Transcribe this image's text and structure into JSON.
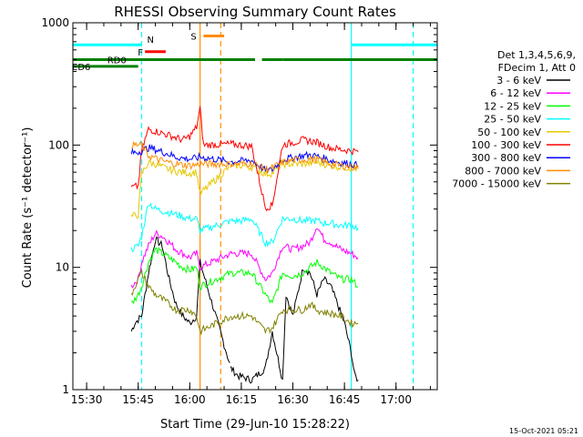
{
  "chart_data": {
    "type": "line",
    "title": "RHESSI Observing Summary Count Rates",
    "xlabel": "Start Time (29-Jun-10 15:28:22)",
    "ylabel": "Count Rate (s⁻¹ detector⁻¹)",
    "y_scale": "log",
    "ylim": [
      1,
      1000
    ],
    "xlim": [
      "15:26",
      "17:12"
    ],
    "x_ticks": [
      "15:30",
      "15:45",
      "16:00",
      "16:15",
      "16:30",
      "16:45",
      "17:00"
    ],
    "y_ticks": [
      "1",
      "10",
      "100",
      "1000"
    ],
    "timestamp": "15-Oct-2021 05:21",
    "legend": {
      "header": [
        "Det 1,3,4,5,6,9,",
        "FDecim 1, Att 0"
      ],
      "placement": "right",
      "entries": [
        {
          "label": "3 - 6 keV",
          "color": "#000000"
        },
        {
          "label": "6 - 12 keV",
          "color": "#ff00ff"
        },
        {
          "label": "12 - 25 keV",
          "color": "#00ff00"
        },
        {
          "label": "25 - 50 keV",
          "color": "#00ffff"
        },
        {
          "label": "50 - 100 keV",
          "color": "#e6c800"
        },
        {
          "label": "100 - 300 keV",
          "color": "#ff0000"
        },
        {
          "label": "300 - 800 keV",
          "color": "#0000ff"
        },
        {
          "label": "800 - 7000 keV",
          "color": "#ff8c00"
        },
        {
          "label": "7000 - 15000 keV",
          "color": "#808000"
        }
      ]
    },
    "flags": [
      {
        "label": "N",
        "color": "#00ffff",
        "segments": [
          [
            "15:26",
            "15:46"
          ],
          [
            "16:47",
            "17:12"
          ]
        ],
        "level": 660
      },
      {
        "label": "F",
        "color": "#ff0000",
        "segments": [
          [
            "15:47",
            "15:53"
          ]
        ],
        "level": 580
      },
      {
        "label": "S",
        "color": "#ff8c00",
        "segments": [
          [
            "16:04",
            "16:10"
          ]
        ],
        "level": 780
      },
      {
        "label": "RD0",
        "color": "#008000",
        "segments": [
          [
            "15:26",
            "16:19"
          ],
          [
            "16:21",
            "16:27"
          ],
          [
            "16:27",
            "17:12"
          ]
        ],
        "level": 500
      },
      {
        "label": "ED6",
        "color": "#008000",
        "segments": [
          [
            "15:26",
            "15:45"
          ]
        ],
        "level": 440
      }
    ],
    "vertical_lines": [
      {
        "time": "15:46",
        "color": "#00ffff",
        "style": "dashed"
      },
      {
        "time": "16:03",
        "color": "#ff8c00",
        "style": "solid"
      },
      {
        "time": "16:09",
        "color": "#ff8c00",
        "style": "dashed"
      },
      {
        "time": "16:47",
        "color": "#00ffff",
        "style": "solid"
      },
      {
        "time": "17:05",
        "color": "#00ffff",
        "style": "dashed"
      }
    ],
    "series": [
      {
        "name": "3 - 6 keV",
        "color": "#000000",
        "points": [
          [
            "15:43",
            3
          ],
          [
            "15:44",
            3.5
          ],
          [
            "15:46",
            4
          ],
          [
            "15:48",
            9
          ],
          [
            "15:50",
            17
          ],
          [
            "15:52",
            15
          ],
          [
            "15:54",
            8
          ],
          [
            "15:56",
            5
          ],
          [
            "15:58",
            4
          ],
          [
            "16:00",
            3.5
          ],
          [
            "16:02",
            4
          ],
          [
            "16:03",
            11
          ],
          [
            "16:12",
            1.5
          ],
          [
            "16:14",
            1.3
          ],
          [
            "16:18",
            1.2
          ],
          [
            "16:22",
            1.5
          ],
          [
            "16:24",
            3
          ],
          [
            "16:27",
            1.2
          ],
          [
            "16:28",
            6
          ],
          [
            "16:30",
            4
          ],
          [
            "16:33",
            10
          ],
          [
            "16:35",
            9
          ],
          [
            "16:37",
            6
          ],
          [
            "16:39",
            8
          ],
          [
            "16:41",
            7
          ],
          [
            "16:43",
            5
          ],
          [
            "16:45",
            3.5
          ],
          [
            "16:47",
            2
          ],
          [
            "16:48",
            1.3
          ],
          [
            "16:49",
            1.2
          ]
        ]
      },
      {
        "name": "6 - 12 keV",
        "color": "#ff00ff",
        "points": [
          [
            "15:43",
            7
          ],
          [
            "15:45",
            8
          ],
          [
            "15:46",
            11
          ],
          [
            "15:48",
            15
          ],
          [
            "15:50",
            19
          ],
          [
            "15:52",
            18
          ],
          [
            "15:54",
            16
          ],
          [
            "15:56",
            14
          ],
          [
            "15:58",
            13
          ],
          [
            "16:00",
            12
          ],
          [
            "16:02",
            13
          ],
          [
            "16:03",
            10
          ],
          [
            "16:12",
            13
          ],
          [
            "16:15",
            13
          ],
          [
            "16:18",
            13
          ],
          [
            "16:22",
            8
          ],
          [
            "16:24",
            9
          ],
          [
            "16:27",
            15
          ],
          [
            "16:30",
            14
          ],
          [
            "16:33",
            15
          ],
          [
            "16:35",
            16
          ],
          [
            "16:37",
            22
          ],
          [
            "16:39",
            17
          ],
          [
            "16:41",
            16
          ],
          [
            "16:44",
            14
          ],
          [
            "16:47",
            13
          ],
          [
            "16:49",
            12
          ]
        ]
      },
      {
        "name": "12 - 25 keV",
        "color": "#00ff00",
        "points": [
          [
            "15:43",
            5
          ],
          [
            "15:45",
            6
          ],
          [
            "15:46",
            7
          ],
          [
            "15:48",
            11
          ],
          [
            "15:50",
            14
          ],
          [
            "15:52",
            13
          ],
          [
            "15:54",
            12
          ],
          [
            "15:56",
            11
          ],
          [
            "15:58",
            10
          ],
          [
            "16:00",
            9.5
          ],
          [
            "16:02",
            10
          ],
          [
            "16:03",
            7
          ],
          [
            "16:12",
            9
          ],
          [
            "16:15",
            9
          ],
          [
            "16:18",
            9
          ],
          [
            "16:22",
            6
          ],
          [
            "16:24",
            5
          ],
          [
            "16:27",
            9
          ],
          [
            "16:30",
            8.5
          ],
          [
            "16:33",
            9
          ],
          [
            "16:35",
            10
          ],
          [
            "16:37",
            11
          ],
          [
            "16:39",
            10
          ],
          [
            "16:41",
            9
          ],
          [
            "16:44",
            8
          ],
          [
            "16:47",
            8
          ],
          [
            "16:49",
            7
          ]
        ]
      },
      {
        "name": "25 - 50 keV",
        "color": "#00ffff",
        "points": [
          [
            "15:43",
            14
          ],
          [
            "15:45",
            15
          ],
          [
            "15:46",
            18
          ],
          [
            "15:48",
            34
          ],
          [
            "15:50",
            30
          ],
          [
            "15:52",
            29
          ],
          [
            "15:54",
            28
          ],
          [
            "15:56",
            27
          ],
          [
            "15:58",
            26
          ],
          [
            "16:00",
            25
          ],
          [
            "16:02",
            25
          ],
          [
            "16:03",
            20
          ],
          [
            "16:12",
            24
          ],
          [
            "16:15",
            24
          ],
          [
            "16:18",
            25
          ],
          [
            "16:22",
            16
          ],
          [
            "16:24",
            16
          ],
          [
            "16:27",
            25
          ],
          [
            "16:30",
            25
          ],
          [
            "16:33",
            24
          ],
          [
            "16:35",
            24
          ],
          [
            "16:37",
            24
          ],
          [
            "16:39",
            23
          ],
          [
            "16:41",
            23
          ],
          [
            "16:44",
            22
          ],
          [
            "16:47",
            22
          ],
          [
            "16:49",
            21
          ]
        ]
      },
      {
        "name": "50 - 100 keV",
        "color": "#e6c800",
        "points": [
          [
            "15:43",
            26
          ],
          [
            "15:45",
            27
          ],
          [
            "15:46",
            58
          ],
          [
            "15:48",
            72
          ],
          [
            "15:50",
            70
          ],
          [
            "15:52",
            66
          ],
          [
            "15:54",
            63
          ],
          [
            "15:56",
            61
          ],
          [
            "15:58",
            60
          ],
          [
            "16:00",
            59
          ],
          [
            "16:02",
            60
          ],
          [
            "16:03",
            40
          ],
          [
            "16:12",
            68
          ],
          [
            "16:15",
            68
          ],
          [
            "16:18",
            66
          ],
          [
            "16:22",
            58
          ],
          [
            "16:24",
            59
          ],
          [
            "16:27",
            70
          ],
          [
            "16:30",
            70
          ],
          [
            "16:33",
            70
          ],
          [
            "16:35",
            71
          ],
          [
            "16:37",
            72
          ],
          [
            "16:39",
            70
          ],
          [
            "16:41",
            68
          ],
          [
            "16:44",
            66
          ],
          [
            "16:47",
            65
          ],
          [
            "16:49",
            64
          ]
        ]
      },
      {
        "name": "100 - 300 keV",
        "color": "#ff0000",
        "points": [
          [
            "15:43",
            45
          ],
          [
            "15:45",
            46
          ],
          [
            "15:46",
            90
          ],
          [
            "15:48",
            135
          ],
          [
            "15:50",
            130
          ],
          [
            "15:52",
            125
          ],
          [
            "15:54",
            120
          ],
          [
            "15:56",
            115
          ],
          [
            "15:58",
            110
          ],
          [
            "16:00",
            118
          ],
          [
            "16:02",
            140
          ],
          [
            "16:03",
            200
          ],
          [
            "16:04",
            100
          ],
          [
            "16:12",
            102
          ],
          [
            "16:15",
            100
          ],
          [
            "16:18",
            98
          ],
          [
            "16:22",
            31
          ],
          [
            "16:24",
            32
          ],
          [
            "16:27",
            100
          ],
          [
            "16:30",
            105
          ],
          [
            "16:33",
            110
          ],
          [
            "16:35",
            108
          ],
          [
            "16:37",
            105
          ],
          [
            "16:39",
            100
          ],
          [
            "16:41",
            95
          ],
          [
            "16:44",
            92
          ],
          [
            "16:47",
            90
          ],
          [
            "16:49",
            88
          ]
        ]
      },
      {
        "name": "300 - 800 keV",
        "color": "#0000ff",
        "points": [
          [
            "15:43",
            86
          ],
          [
            "15:45",
            88
          ],
          [
            "15:46",
            90
          ],
          [
            "15:48",
            95
          ],
          [
            "15:50",
            92
          ],
          [
            "15:52",
            88
          ],
          [
            "15:54",
            84
          ],
          [
            "15:56",
            80
          ],
          [
            "15:58",
            78
          ],
          [
            "16:00",
            77
          ],
          [
            "16:02",
            78
          ],
          [
            "16:03",
            80
          ],
          [
            "16:12",
            73
          ],
          [
            "16:15",
            74
          ],
          [
            "16:18",
            75
          ],
          [
            "16:22",
            62
          ],
          [
            "16:24",
            63
          ],
          [
            "16:27",
            76
          ],
          [
            "16:30",
            79
          ],
          [
            "16:33",
            82
          ],
          [
            "16:35",
            83
          ],
          [
            "16:37",
            81
          ],
          [
            "16:39",
            78
          ],
          [
            "16:41",
            75
          ],
          [
            "16:44",
            72
          ],
          [
            "16:47",
            70
          ],
          [
            "16:49",
            68
          ]
        ]
      },
      {
        "name": "800 - 7000 keV",
        "color": "#ff8c00",
        "points": [
          [
            "15:43",
            100
          ],
          [
            "15:45",
            100
          ],
          [
            "15:46",
            100
          ],
          [
            "15:48",
            82
          ],
          [
            "15:50",
            78
          ],
          [
            "15:52",
            74
          ],
          [
            "15:54",
            72
          ],
          [
            "15:56",
            70
          ],
          [
            "15:58",
            69
          ],
          [
            "16:00",
            68
          ],
          [
            "16:02",
            69
          ],
          [
            "16:03",
            70
          ],
          [
            "16:12",
            70
          ],
          [
            "16:15",
            70
          ],
          [
            "16:18",
            71
          ],
          [
            "16:22",
            64
          ],
          [
            "16:24",
            65
          ],
          [
            "16:27",
            72
          ],
          [
            "16:30",
            75
          ],
          [
            "16:33",
            76
          ],
          [
            "16:35",
            77
          ],
          [
            "16:37",
            76
          ],
          [
            "16:39",
            73
          ],
          [
            "16:41",
            70
          ],
          [
            "16:44",
            68
          ],
          [
            "16:47",
            66
          ],
          [
            "16:49",
            65
          ]
        ]
      },
      {
        "name": "7000 - 15000 keV",
        "color": "#808000",
        "points": [
          [
            "15:43",
            6
          ],
          [
            "15:44",
            7
          ],
          [
            "15:45",
            8
          ],
          [
            "15:46",
            9
          ],
          [
            "15:48",
            7
          ],
          [
            "15:50",
            6
          ],
          [
            "15:52",
            5.5
          ],
          [
            "15:54",
            5
          ],
          [
            "15:56",
            4.5
          ],
          [
            "15:58",
            4.5
          ],
          [
            "16:00",
            4.5
          ],
          [
            "16:02",
            4
          ],
          [
            "16:03",
            3
          ],
          [
            "16:12",
            4
          ],
          [
            "16:15",
            4
          ],
          [
            "16:18",
            4
          ],
          [
            "16:22",
            3
          ],
          [
            "16:24",
            3.2
          ],
          [
            "16:27",
            4.5
          ],
          [
            "16:30",
            4.5
          ],
          [
            "16:33",
            4.5
          ],
          [
            "16:35",
            5
          ],
          [
            "16:37",
            4.5
          ],
          [
            "16:39",
            4.3
          ],
          [
            "16:41",
            4.2
          ],
          [
            "16:44",
            4
          ],
          [
            "16:47",
            3.5
          ],
          [
            "16:49",
            3.5
          ]
        ]
      }
    ]
  }
}
